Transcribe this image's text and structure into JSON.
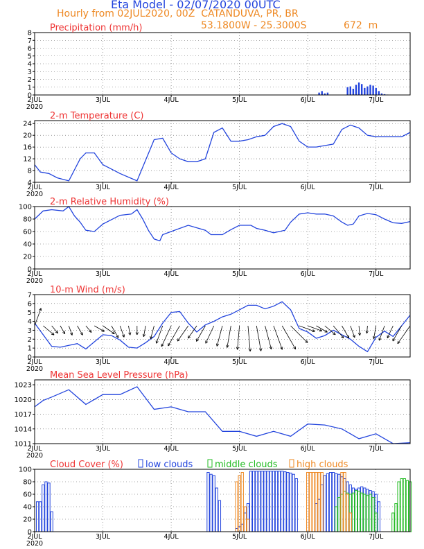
{
  "header": {
    "title": "Eta Model - 02/07/2020 00UTC",
    "subtitle": "Hourly from 02JUL2020, 00Z  CATANDUVA, PR, BR",
    "location_coords": "53.1800W - 25.3000S",
    "elevation": "672  m",
    "title_color": "#2244dd",
    "subtitle_color": "#ee8822"
  },
  "colors": {
    "line": "#2244dd",
    "panel_title": "#ee3333",
    "low": "#2244dd",
    "mid": "#22bb22",
    "high": "#ee8822",
    "wind_arrow": "#000000"
  },
  "x_axis": {
    "ticks": [
      {
        "t": 0,
        "label": "2JUL",
        "sub": "2020"
      },
      {
        "t": 24,
        "label": "3JUL",
        "sub": ""
      },
      {
        "t": 48,
        "label": "4JUL",
        "sub": ""
      },
      {
        "t": 72,
        "label": "5JUL",
        "sub": ""
      },
      {
        "t": 96,
        "label": "6JUL",
        "sub": ""
      },
      {
        "t": 120,
        "label": "7JUL",
        "sub": ""
      }
    ],
    "xlim": [
      0,
      132
    ]
  },
  "chart_data": [
    {
      "type": "bar",
      "id": "precip",
      "title": "Precipitation (mm/h)",
      "ylim": [
        0,
        8
      ],
      "yticks": [
        0,
        1,
        2,
        3,
        4,
        5,
        6,
        7,
        8
      ],
      "t": [
        96,
        100,
        101,
        102,
        103,
        110,
        111,
        112,
        113,
        114,
        115,
        116,
        117,
        118,
        119,
        120,
        121,
        122,
        123,
        124
      ],
      "values": [
        0.05,
        0.3,
        0.5,
        0.2,
        0.3,
        1.0,
        1.1,
        0.8,
        1.3,
        1.6,
        1.4,
        0.9,
        1.1,
        1.3,
        1.2,
        0.9,
        0.5,
        0.2,
        0.1,
        0.05
      ]
    },
    {
      "type": "line",
      "id": "temp",
      "title": "2-m Temperature (C)",
      "ylim": [
        4,
        25
      ],
      "yticks": [
        4,
        8,
        12,
        16,
        20,
        24
      ],
      "t": [
        0,
        2,
        5,
        8,
        12,
        16,
        18,
        21,
        24,
        26,
        30,
        36,
        42,
        45,
        48,
        51,
        54,
        57,
        60,
        63,
        66,
        69,
        72,
        75,
        78,
        81,
        84,
        87,
        90,
        93,
        96,
        99,
        102,
        105,
        108,
        111,
        114,
        117,
        120,
        123,
        126,
        129,
        132
      ],
      "values": [
        10,
        7.5,
        7,
        5.5,
        4.5,
        12,
        14,
        14,
        10,
        9,
        7,
        4.5,
        18.5,
        19,
        14,
        12,
        11,
        11,
        12,
        21,
        22.5,
        18,
        18,
        18.5,
        19.5,
        20,
        23,
        24,
        23,
        18,
        16,
        16,
        16.5,
        17,
        22,
        23.5,
        22.5,
        20,
        19.5,
        19.5,
        19.5,
        19.5,
        21
      ]
    },
    {
      "type": "line",
      "id": "rh",
      "title": "2-m Relative Humidity (%)",
      "ylim": [
        0,
        100
      ],
      "yticks": [
        0,
        20,
        40,
        60,
        80,
        100
      ],
      "t": [
        0,
        3,
        6,
        10,
        12,
        14,
        16,
        18,
        21,
        24,
        30,
        34,
        36,
        38,
        40,
        42,
        44,
        45,
        48,
        54,
        60,
        62,
        66,
        69,
        72,
        76,
        78,
        81,
        84,
        88,
        90,
        93,
        96,
        99,
        102,
        105,
        108,
        110,
        112,
        114,
        117,
        120,
        123,
        126,
        129,
        132
      ],
      "values": [
        80,
        93,
        95,
        93,
        100,
        85,
        75,
        62,
        60,
        72,
        86,
        88,
        95,
        80,
        62,
        48,
        45,
        55,
        60,
        70,
        62,
        55,
        55,
        63,
        70,
        70,
        65,
        62,
        58,
        62,
        75,
        88,
        90,
        88,
        88,
        85,
        75,
        70,
        72,
        85,
        89,
        87,
        80,
        74,
        73,
        76
      ]
    },
    {
      "type": "line",
      "id": "wind",
      "title": "10-m Wind (m/s)",
      "ylim": [
        0,
        7
      ],
      "yticks": [
        0,
        1,
        2,
        3,
        4,
        5,
        6,
        7
      ],
      "t": [
        0,
        3,
        6,
        9,
        12,
        15,
        18,
        21,
        24,
        27,
        30,
        33,
        36,
        39,
        42,
        45,
        48,
        51,
        54,
        57,
        60,
        63,
        66,
        69,
        72,
        75,
        78,
        81,
        84,
        87,
        90,
        93,
        96,
        99,
        102,
        105,
        108,
        111,
        114,
        117,
        120,
        123,
        126,
        129,
        132
      ],
      "values": [
        3.8,
        2.5,
        1.2,
        1.1,
        1.3,
        1.5,
        0.9,
        1.7,
        2.5,
        2.4,
        1.9,
        1.1,
        1.0,
        1.6,
        2.3,
        3.8,
        5.0,
        5.1,
        3.8,
        2.8,
        3.6,
        4.0,
        4.5,
        4.8,
        5.3,
        5.8,
        5.8,
        5.4,
        5.7,
        6.2,
        5.3,
        3.2,
        2.8,
        2.1,
        2.4,
        3.0,
        2.5,
        2.0,
        1.2,
        0.6,
        2.2,
        2.9,
        2.3,
        3.5,
        4.7
      ],
      "arrows_dir": [
        20,
        130,
        140,
        150,
        160,
        150,
        140,
        120,
        125,
        150,
        160,
        170,
        180,
        190,
        195,
        200,
        205,
        210,
        215,
        215,
        210,
        205,
        195,
        190,
        185,
        175,
        170,
        165,
        160,
        150,
        135,
        110,
        110,
        120,
        130,
        140,
        150,
        160,
        175,
        185,
        190,
        200,
        205,
        210,
        215
      ]
    },
    {
      "type": "line",
      "id": "mslp",
      "title": "Mean Sea Level Pressure (hPa)",
      "ylim": [
        1011,
        1024
      ],
      "yticks": [
        1011,
        1014,
        1017,
        1020,
        1023
      ],
      "t": [
        0,
        3,
        6,
        12,
        18,
        24,
        30,
        36,
        42,
        48,
        54,
        60,
        66,
        72,
        78,
        84,
        90,
        96,
        102,
        108,
        114,
        120,
        126,
        132
      ],
      "values": [
        1018.5,
        1019.8,
        1020.5,
        1022,
        1019,
        1021,
        1021,
        1022.6,
        1018,
        1018.5,
        1017.5,
        1017.5,
        1013.5,
        1013.5,
        1012.5,
        1013.5,
        1012.5,
        1015,
        1014.8,
        1014,
        1012,
        1013,
        1011,
        1011.2
      ]
    },
    {
      "type": "bar",
      "id": "cloud",
      "title": "Cloud Cover (%)",
      "legend": [
        "low clouds",
        "middle clouds",
        "high clouds"
      ],
      "ylim": [
        0,
        100
      ],
      "yticks": [
        0,
        20,
        40,
        60,
        80,
        100
      ],
      "series": [
        {
          "name": "low clouds",
          "t": [
            1,
            2,
            3,
            4,
            5,
            6,
            61,
            62,
            63,
            64,
            65,
            66,
            67,
            68,
            69,
            70,
            71,
            72,
            73,
            74,
            75,
            76,
            77,
            78,
            79,
            80,
            81,
            82,
            83,
            84,
            85,
            86,
            87,
            88,
            89,
            90,
            91,
            92,
            99,
            100,
            101,
            102,
            103,
            104,
            105,
            106,
            107,
            108,
            109,
            110,
            111,
            112,
            113,
            114,
            115,
            116,
            117,
            118,
            119,
            120,
            121
          ],
          "values": [
            48,
            48,
            75,
            80,
            78,
            32,
            95,
            92,
            90,
            70,
            50,
            0,
            0,
            0,
            0,
            0,
            5,
            8,
            12,
            30,
            45,
            97,
            97,
            97,
            97,
            97,
            97,
            97,
            97,
            97,
            97,
            97,
            97,
            96,
            95,
            94,
            92,
            85,
            45,
            52,
            75,
            90,
            93,
            95,
            95,
            93,
            92,
            88,
            85,
            80,
            75,
            70,
            68,
            70,
            72,
            70,
            68,
            66,
            64,
            60,
            48
          ]
        },
        {
          "name": "middle clouds",
          "t": [
            106,
            107,
            108,
            109,
            110,
            111,
            112,
            113,
            114,
            115,
            116,
            117,
            118,
            119,
            120,
            126,
            127,
            128,
            129,
            130,
            131,
            132
          ],
          "values": [
            40,
            55,
            60,
            65,
            62,
            60,
            62,
            66,
            65,
            62,
            60,
            58,
            60,
            55,
            30,
            30,
            45,
            80,
            85,
            85,
            82,
            80
          ]
        },
        {
          "name": "high clouds",
          "t": [
            71,
            72,
            73,
            74,
            75,
            96,
            97,
            98,
            99,
            100,
            101,
            108,
            109,
            110,
            111
          ],
          "values": [
            80,
            90,
            95,
            40,
            20,
            95,
            95,
            95,
            95,
            95,
            95,
            95,
            95,
            60,
            30
          ]
        }
      ]
    }
  ]
}
